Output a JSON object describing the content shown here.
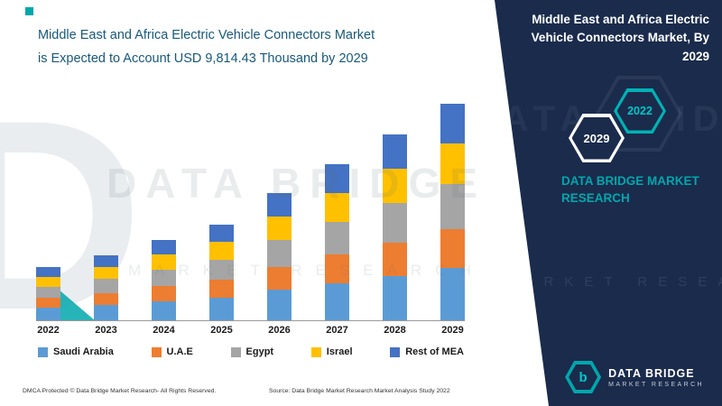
{
  "left": {
    "title_line1": "Middle East and Africa Electric Vehicle Connectors Market",
    "title_line2": "is Expected to Account USD 9,814.43 Thousand by 2029",
    "footer_left": "DMCA Protected © Data Bridge Market Research- All Rights Reserved.",
    "footer_source": "Source: Data Bridge Market Research Market Analysis Study 2022"
  },
  "right": {
    "title": "Middle East and Africa Electric Vehicle Connectors Market, By 2029",
    "hex_2029": "2029",
    "hex_2022": "2022",
    "brand_caption": "DATA BRIDGE MARKET RESEARCH",
    "logo_letter": "b",
    "logo_title": "DATA BRIDGE",
    "logo_subtitle": "MARKET RESEARCH"
  },
  "watermarks": {
    "left_brand": "DATA BRIDGE",
    "left_sub": "MARKET RESEARCH",
    "right_brand": "DATA BRIDGE",
    "right_sub": "MARKET RESEARCH"
  },
  "colors": {
    "navy": "#1a2b4c",
    "teal": "#00a7ab",
    "title_text": "#17597c"
  },
  "chart_data": {
    "type": "bar",
    "stacked": true,
    "title": "Middle East and Africa Electric Vehicle Connectors Market is Expected to Account USD 9,814.43 Thousand by 2029",
    "unit": "USD Thousand",
    "categories": [
      "2022",
      "2023",
      "2024",
      "2025",
      "2026",
      "2027",
      "2028",
      "2029"
    ],
    "series": [
      {
        "name": "Saudi Arabia",
        "color": "#5B9BD5",
        "values": [
          583,
          710,
          876,
          1042,
          1382,
          1694,
          2016,
          2355
        ]
      },
      {
        "name": "U.A.E",
        "color": "#ED7D31",
        "values": [
          437,
          533,
          657,
          781,
          1037,
          1271,
          1512,
          1767
        ]
      },
      {
        "name": "Egypt",
        "color": "#A5A5A5",
        "values": [
          510,
          622,
          767,
          911,
          1210,
          1483,
          1764,
          2061
        ]
      },
      {
        "name": "Israel",
        "color": "#FFC000",
        "values": [
          450,
          548,
          675,
          803,
          1066,
          1306,
          1554,
          1816
        ]
      },
      {
        "name": "Rest of MEA",
        "color": "#4472C4",
        "values": [
          450,
          548,
          675,
          803,
          1066,
          1306,
          1554,
          1815.43
        ]
      }
    ],
    "totals": [
      2430,
      2961,
      3650,
      4340,
      5761,
      7060,
      8400,
      9814.43
    ],
    "xlabel": "",
    "ylabel": "",
    "ylim": [
      0,
      10000
    ],
    "grid": false,
    "legend_position": "bottom",
    "note": "segment values estimated from bar proportions; 2029 total anchored to 9,814.43"
  }
}
